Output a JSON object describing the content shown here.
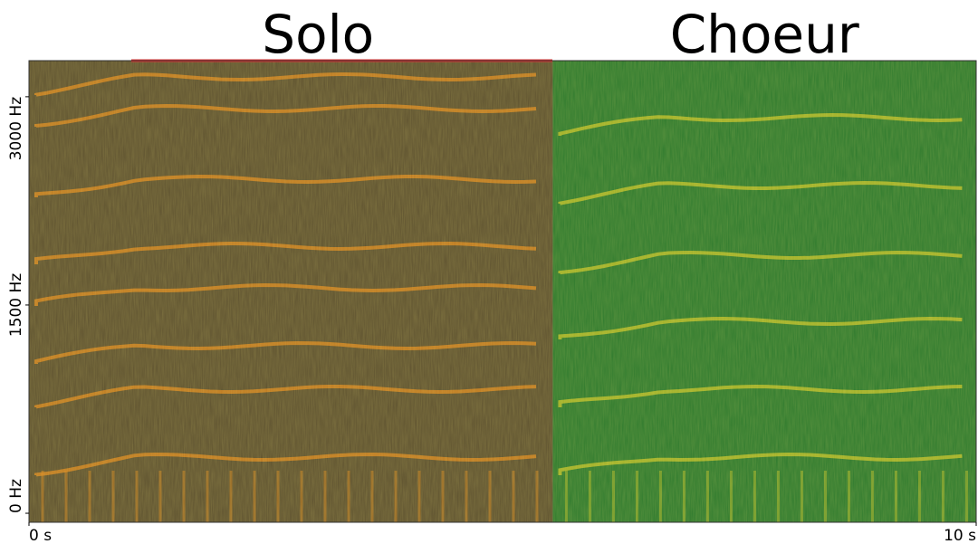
{
  "chart_data": {
    "type": "spectrogram",
    "panels": [
      {
        "title": "Solo",
        "color": "#5e5230",
        "line_color": "#e08a1e",
        "xrange": [
          0,
          5.53
        ]
      },
      {
        "title": "Choeur",
        "color": "#2e7a2e",
        "line_color": "#c8c428",
        "xrange": [
          5.53,
          10
        ]
      }
    ],
    "xlim": [
      0,
      10
    ],
    "xticks": [
      {
        "value": 0,
        "label": "0 s"
      },
      {
        "value": 10,
        "label": "10 s"
      }
    ],
    "ylim": [
      -65,
      3260
    ],
    "yticks": [
      {
        "value": 0,
        "label": "0 Hz"
      },
      {
        "value": 1500,
        "label": "1500 Hz"
      },
      {
        "value": 3000,
        "label": "3000 Hz"
      }
    ]
  }
}
